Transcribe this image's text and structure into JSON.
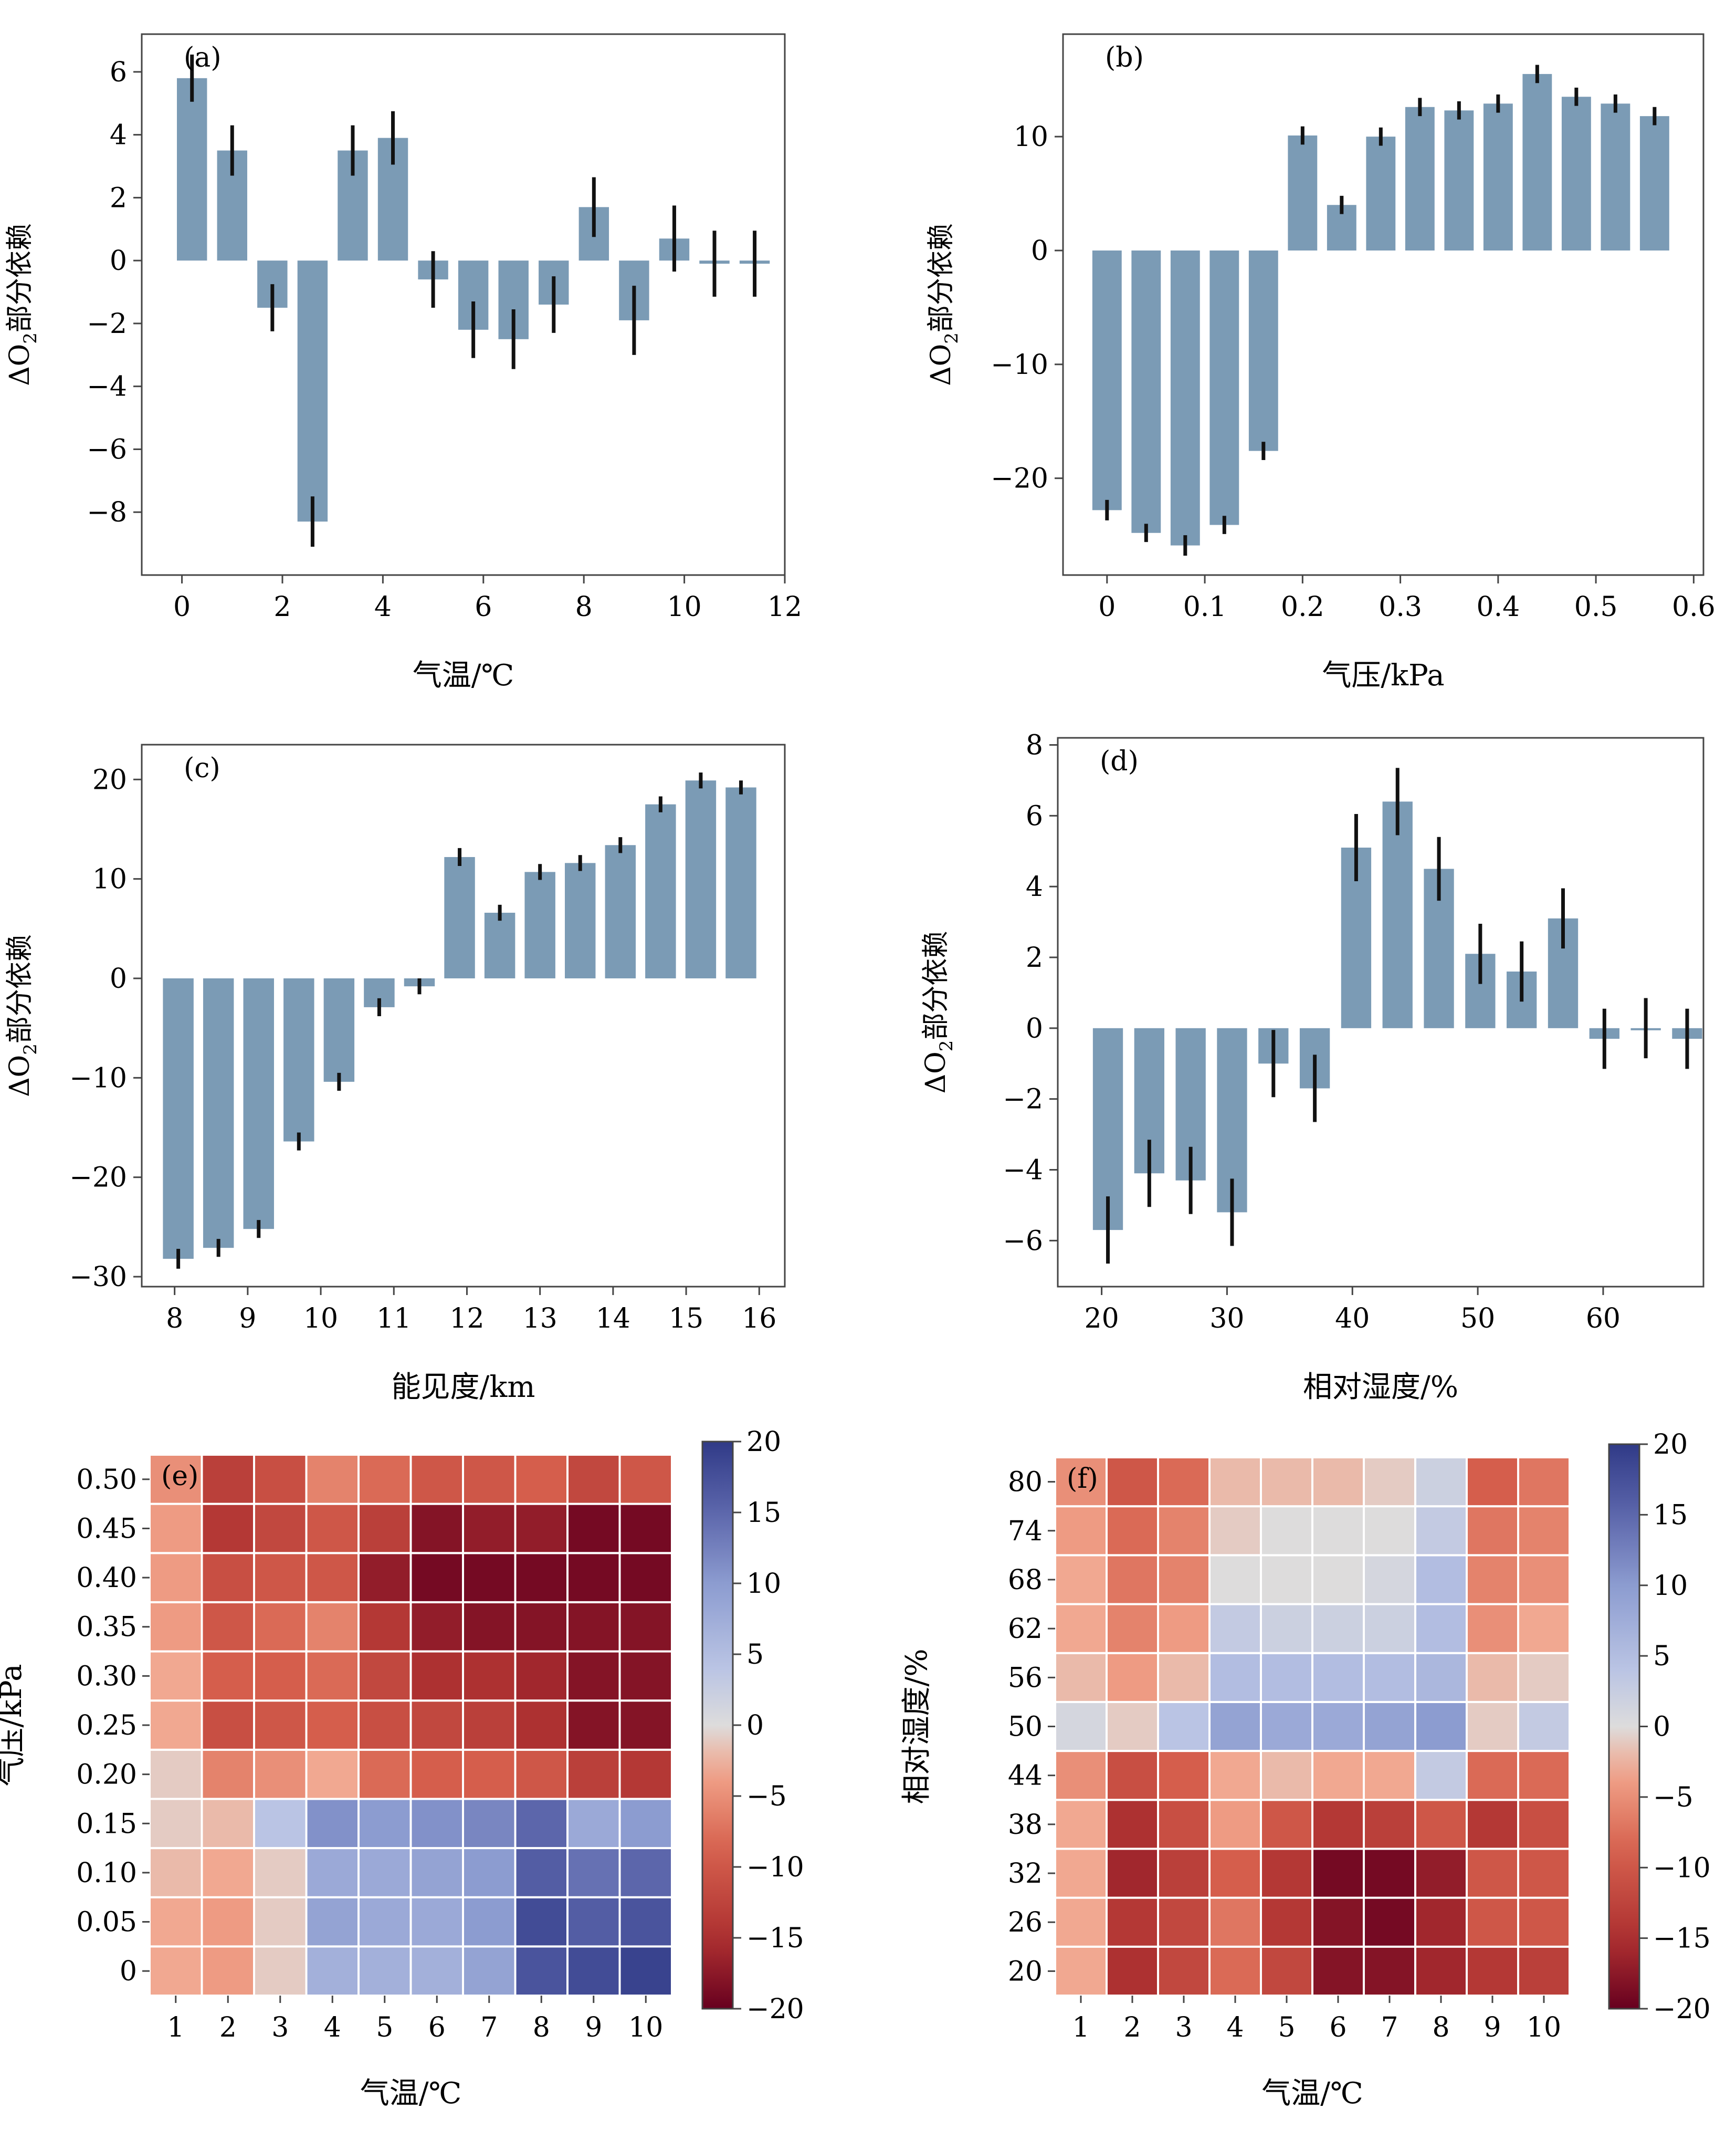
{
  "colors": {
    "bar": "#7b9bb5",
    "error": "#111111",
    "axis": "#444444",
    "cmap_low": "#67001f",
    "cmap_mid": "#dddcdc",
    "cmap_high": "#3b4b8f"
  },
  "chart_data": [
    {
      "type": "bar",
      "panel_label": "(a)",
      "xlabel": "气温/℃",
      "ylabel": [
        "ΔO",
        "2",
        "部分依赖"
      ],
      "xlim": [
        -0.8,
        12
      ],
      "ylim": [
        -10,
        7.2
      ],
      "xticks": [
        0,
        2,
        4,
        6,
        8,
        10,
        12
      ],
      "yticks": [
        -8,
        -6,
        -4,
        -2,
        0,
        2,
        4,
        6
      ],
      "bar_width": 0.6,
      "x": [
        0.2,
        1.0,
        1.8,
        2.6,
        3.4,
        4.2,
        5.0,
        5.8,
        6.6,
        7.4,
        8.2,
        9.0,
        9.8,
        10.6,
        11.4
      ],
      "values": [
        5.8,
        3.5,
        -1.5,
        -8.3,
        3.5,
        3.9,
        -0.6,
        -2.2,
        -2.5,
        -1.4,
        1.7,
        -1.9,
        0.7,
        -0.1,
        -0.1
      ],
      "errors": [
        0.75,
        0.8,
        0.75,
        0.8,
        0.8,
        0.85,
        0.9,
        0.9,
        0.95,
        0.9,
        0.95,
        1.1,
        1.05,
        1.05,
        1.05
      ]
    },
    {
      "type": "bar",
      "panel_label": "(b)",
      "xlabel": "气压/kPa",
      "ylabel": [
        "ΔO",
        "2",
        "部分依赖"
      ],
      "xlim": [
        -0.045,
        0.61
      ],
      "ylim": [
        -28.5,
        19
      ],
      "xticks": [
        0,
        0.1,
        0.2,
        0.3,
        0.4,
        0.5,
        0.6
      ],
      "yticks": [
        -20,
        -10,
        0,
        10
      ],
      "bar_width": 0.03,
      "x": [
        0.0,
        0.04,
        0.08,
        0.12,
        0.16,
        0.2,
        0.24,
        0.28,
        0.32,
        0.36,
        0.4,
        0.44,
        0.48,
        0.52,
        0.56
      ],
      "values": [
        -22.8,
        -24.8,
        -25.9,
        -24.1,
        -17.6,
        10.1,
        4.0,
        10.0,
        12.6,
        12.3,
        12.9,
        15.5,
        13.5,
        12.9,
        11.8
      ],
      "errors": [
        0.9,
        0.8,
        0.9,
        0.8,
        0.8,
        0.8,
        0.8,
        0.8,
        0.8,
        0.8,
        0.8,
        0.8,
        0.8,
        0.8,
        0.8
      ]
    },
    {
      "type": "bar",
      "panel_label": "(c)",
      "xlabel": "能见度/km",
      "ylabel": [
        "ΔO",
        "2",
        "部分依赖"
      ],
      "xlim": [
        7.55,
        16.35
      ],
      "ylim": [
        -31,
        23.5
      ],
      "xticks": [
        8,
        9,
        10,
        11,
        12,
        13,
        14,
        15,
        16
      ],
      "yticks": [
        -30,
        -20,
        -10,
        0,
        10,
        20
      ],
      "bar_width": 0.42,
      "x": [
        8.05,
        8.6,
        9.15,
        9.7,
        10.25,
        10.8,
        11.35,
        11.9,
        12.45,
        13.0,
        13.55,
        14.1,
        14.65,
        15.2,
        15.75
      ],
      "values": [
        -28.2,
        -27.1,
        -25.2,
        -16.4,
        -10.4,
        -2.9,
        -0.8,
        12.2,
        6.6,
        10.7,
        11.6,
        13.4,
        17.5,
        19.9,
        19.2
      ],
      "errors": [
        1.0,
        0.9,
        0.9,
        0.9,
        0.9,
        0.9,
        0.8,
        0.9,
        0.8,
        0.8,
        0.8,
        0.8,
        0.8,
        0.8,
        0.7
      ]
    },
    {
      "type": "bar",
      "panel_label": "(d)",
      "xlabel": "相对湿度/%",
      "ylabel": [
        "ΔO",
        "2",
        "部分依赖"
      ],
      "xlim": [
        16.5,
        68
      ],
      "ylim": [
        -7.3,
        8.2
      ],
      "xticks": [
        20,
        30,
        40,
        50,
        60
      ],
      "yticks": [
        -6,
        -4,
        -2,
        0,
        2,
        4,
        6,
        8
      ],
      "bar_width": 2.4,
      "x": [
        20.5,
        23.8,
        27.1,
        30.4,
        33.7,
        37.0,
        40.3,
        43.6,
        46.9,
        50.2,
        53.5,
        56.8,
        60.1,
        63.4,
        66.7
      ],
      "values": [
        -5.7,
        -4.1,
        -4.3,
        -5.2,
        -1.0,
        -1.7,
        5.1,
        6.4,
        4.5,
        2.1,
        1.6,
        3.1,
        -0.3,
        0.0,
        -0.3
      ],
      "errors": [
        0.95,
        0.95,
        0.95,
        0.95,
        0.95,
        0.95,
        0.95,
        0.95,
        0.9,
        0.85,
        0.85,
        0.85,
        0.85,
        0.85,
        0.85
      ]
    },
    {
      "type": "heatmap",
      "panel_label": "(e)",
      "xlabel": "气温/℃",
      "ylabel": "气压/kPa",
      "x": [
        "1",
        "2",
        "3",
        "4",
        "5",
        "6",
        "7",
        "8",
        "9",
        "10"
      ],
      "y": [
        "0",
        "0.05",
        "0.10",
        "0.15",
        "0.20",
        "0.25",
        "0.30",
        "0.35",
        "0.40",
        "0.45",
        "0.50"
      ],
      "vmin": -20,
      "vmax": 20,
      "colorbar_ticks": [
        -20,
        -15,
        -10,
        -5,
        0,
        5,
        10,
        15,
        20
      ],
      "z": [
        [
          -3,
          -4,
          -1,
          7,
          7,
          7,
          9,
          17,
          18,
          19
        ],
        [
          -3,
          -4,
          -1,
          9,
          8,
          8,
          10,
          18,
          16,
          17
        ],
        [
          -2,
          -3,
          -1,
          8,
          8,
          9,
          10,
          16,
          14,
          15
        ],
        [
          -1,
          -2,
          4,
          11,
          10,
          11,
          12,
          15,
          8,
          10
        ],
        [
          -1,
          -6,
          -5,
          -3,
          -8,
          -9,
          -9,
          -10,
          -13,
          -14
        ],
        [
          -3,
          -11,
          -10,
          -9,
          -11,
          -12,
          -13,
          -15,
          -18,
          -18
        ],
        [
          -3,
          -9,
          -9,
          -8,
          -12,
          -15,
          -15,
          -16,
          -18,
          -18
        ],
        [
          -4,
          -10,
          -8,
          -6,
          -14,
          -17,
          -18,
          -18,
          -18,
          -18
        ],
        [
          -4,
          -11,
          -10,
          -10,
          -17,
          -19,
          -19,
          -19,
          -19,
          -19
        ],
        [
          -4,
          -14,
          -12,
          -10,
          -13,
          -18,
          -17,
          -17,
          -19,
          -19
        ],
        [
          -5,
          -13,
          -11,
          -6,
          -8,
          -10,
          -10,
          -9,
          -12,
          -10
        ]
      ]
    },
    {
      "type": "heatmap",
      "panel_label": "(f)",
      "xlabel": "气温/℃",
      "ylabel": "相对湿度/%",
      "x": [
        "1",
        "2",
        "3",
        "4",
        "5",
        "6",
        "7",
        "8",
        "9",
        "10"
      ],
      "y": [
        "20",
        "26",
        "32",
        "38",
        "44",
        "50",
        "56",
        "62",
        "68",
        "74",
        "80"
      ],
      "vmin": -20,
      "vmax": 20,
      "colorbar_ticks": [
        -20,
        -15,
        -10,
        -5,
        0,
        5,
        10,
        15,
        20
      ],
      "z": [
        [
          -3,
          -15,
          -12,
          -8,
          -12,
          -18,
          -18,
          -16,
          -14,
          -13
        ],
        [
          -3,
          -14,
          -12,
          -7,
          -14,
          -18,
          -19,
          -16,
          -10,
          -10
        ],
        [
          -3,
          -16,
          -13,
          -9,
          -14,
          -19,
          -19,
          -17,
          -10,
          -10
        ],
        [
          -3,
          -15,
          -11,
          -4,
          -10,
          -14,
          -13,
          -10,
          -14,
          -11
        ],
        [
          -5,
          -11,
          -9,
          -3,
          -2,
          -3,
          -3,
          3,
          -8,
          -8
        ],
        [
          1,
          -1,
          4,
          9,
          8,
          8,
          9,
          10,
          -1,
          3
        ],
        [
          -2,
          -4,
          -2,
          5,
          5,
          5,
          5,
          6,
          -2,
          -1
        ],
        [
          -3,
          -6,
          -4,
          3,
          2,
          2,
          2,
          5,
          -5,
          -3
        ],
        [
          -3,
          -7,
          -6,
          0,
          0,
          0,
          1,
          5,
          -6,
          -5
        ],
        [
          -4,
          -8,
          -6,
          -1,
          0,
          0,
          0,
          3,
          -7,
          -6
        ],
        [
          -5,
          -10,
          -8,
          -2,
          -2,
          -2,
          -1,
          2,
          -9,
          -7
        ]
      ]
    }
  ]
}
